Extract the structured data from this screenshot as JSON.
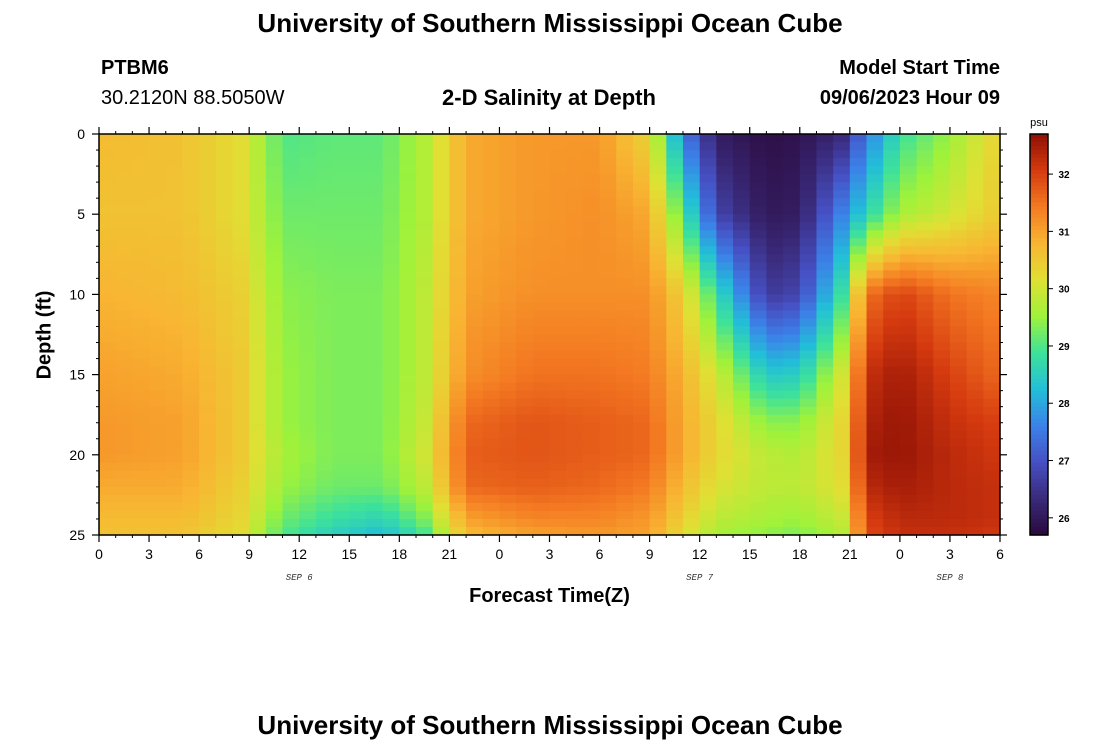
{
  "header": {
    "title": "University of Southern Mississippi Ocean Cube",
    "station_id": "PTBM6",
    "station_coords": "30.2120N  88.5050W",
    "plot_title": "2-D Salinity at Depth",
    "model_start_label": "Model Start Time",
    "model_start_value": "09/06/2023 Hour 09"
  },
  "footer": {
    "title": "University of Southern Mississippi Ocean Cube"
  },
  "chart_data": {
    "type": "heatmap",
    "title": "2-D Salinity at Depth",
    "xlabel": "Forecast Time(Z)",
    "ylabel": "Depth (ft)",
    "x_ticks": [
      "0",
      "3",
      "6",
      "9",
      "12",
      "15",
      "18",
      "21",
      "0",
      "3",
      "6",
      "9",
      "12",
      "15",
      "18",
      "21",
      "0",
      "3",
      "6"
    ],
    "x_range_hours": [
      0,
      54
    ],
    "y_ticks": [
      "0",
      "5",
      "10",
      "15",
      "20",
      "25"
    ],
    "y_range_ft": [
      0,
      25
    ],
    "y_inverted": true,
    "date_labels": [
      {
        "text": "SEP 6",
        "hour": 12
      },
      {
        "text": "SEP 7",
        "hour": 36
      },
      {
        "text": "SEP 8",
        "hour": 51
      }
    ],
    "colorbar": {
      "unit": "psu",
      "min": 25.7,
      "max": 32.7,
      "ticks": [
        "26",
        "27",
        "28",
        "29",
        "30",
        "31",
        "32"
      ],
      "colors": [
        "#2b0a3d",
        "#3a2a7a",
        "#4650c4",
        "#3b82e8",
        "#22bfd8",
        "#3ee29a",
        "#9ff23a",
        "#e0e034",
        "#f8b532",
        "#f47a22",
        "#d53a0f",
        "#8e0f05"
      ]
    },
    "field_description": "salinity (psu) by forecast hour (x) and depth in feet (y)",
    "anchors": {
      "hours": [
        0,
        5,
        8.5,
        11,
        14,
        17,
        19.5,
        22,
        26,
        30,
        33,
        35,
        37,
        40,
        42,
        44.5,
        46,
        48,
        51,
        54
      ],
      "depths_ft": [
        0,
        5,
        10,
        15,
        18,
        20,
        22,
        24,
        25
      ],
      "salinity_psu": [
        [
          30.7,
          30.6,
          30.2,
          29.0,
          29.1,
          29.1,
          29.7,
          30.9,
          31.1,
          31.1,
          30.3,
          27.6,
          26.1,
          25.8,
          25.9,
          26.3,
          27.5,
          28.8,
          29.5,
          30.4
        ],
        [
          30.6,
          30.6,
          30.2,
          29.2,
          29.2,
          29.2,
          29.7,
          30.9,
          31.1,
          31.2,
          30.9,
          29.0,
          26.8,
          26.0,
          26.1,
          27.6,
          28.6,
          29.6,
          30.0,
          30.5
        ],
        [
          30.8,
          30.7,
          30.4,
          29.4,
          29.3,
          29.3,
          29.8,
          31.0,
          31.2,
          31.2,
          31.2,
          30.4,
          28.8,
          26.6,
          26.8,
          28.8,
          31.5,
          32.0,
          31.5,
          31.3
        ],
        [
          31.0,
          30.9,
          30.5,
          29.5,
          29.3,
          29.3,
          29.8,
          31.2,
          31.5,
          31.5,
          31.4,
          30.8,
          30.0,
          28.4,
          28.5,
          30.0,
          32.2,
          32.5,
          32.0,
          31.6
        ],
        [
          31.1,
          31.0,
          30.5,
          29.5,
          29.3,
          29.3,
          29.9,
          31.6,
          31.8,
          31.7,
          31.6,
          30.9,
          30.3,
          29.4,
          29.4,
          30.3,
          32.4,
          32.6,
          32.2,
          32.0
        ],
        [
          31.1,
          31.0,
          30.5,
          29.6,
          29.3,
          29.3,
          30.0,
          31.7,
          31.8,
          31.7,
          31.6,
          30.9,
          30.3,
          29.8,
          29.7,
          30.3,
          32.5,
          32.6,
          32.3,
          32.1
        ],
        [
          30.9,
          30.9,
          30.4,
          29.5,
          29.2,
          29.2,
          29.8,
          31.6,
          31.7,
          31.6,
          31.4,
          30.7,
          30.1,
          29.8,
          29.8,
          30.2,
          32.3,
          32.5,
          32.3,
          32.2
        ],
        [
          30.7,
          30.7,
          30.3,
          29.2,
          28.8,
          28.6,
          29.3,
          31.0,
          31.3,
          31.3,
          31.1,
          30.4,
          29.8,
          29.6,
          29.5,
          29.9,
          32.0,
          32.3,
          32.3,
          32.2
        ],
        [
          30.6,
          30.6,
          30.2,
          29.0,
          28.5,
          28.2,
          28.9,
          30.7,
          31.0,
          31.1,
          31.0,
          30.2,
          29.6,
          29.4,
          29.3,
          29.7,
          31.9,
          32.2,
          32.2,
          32.1
        ]
      ]
    }
  }
}
